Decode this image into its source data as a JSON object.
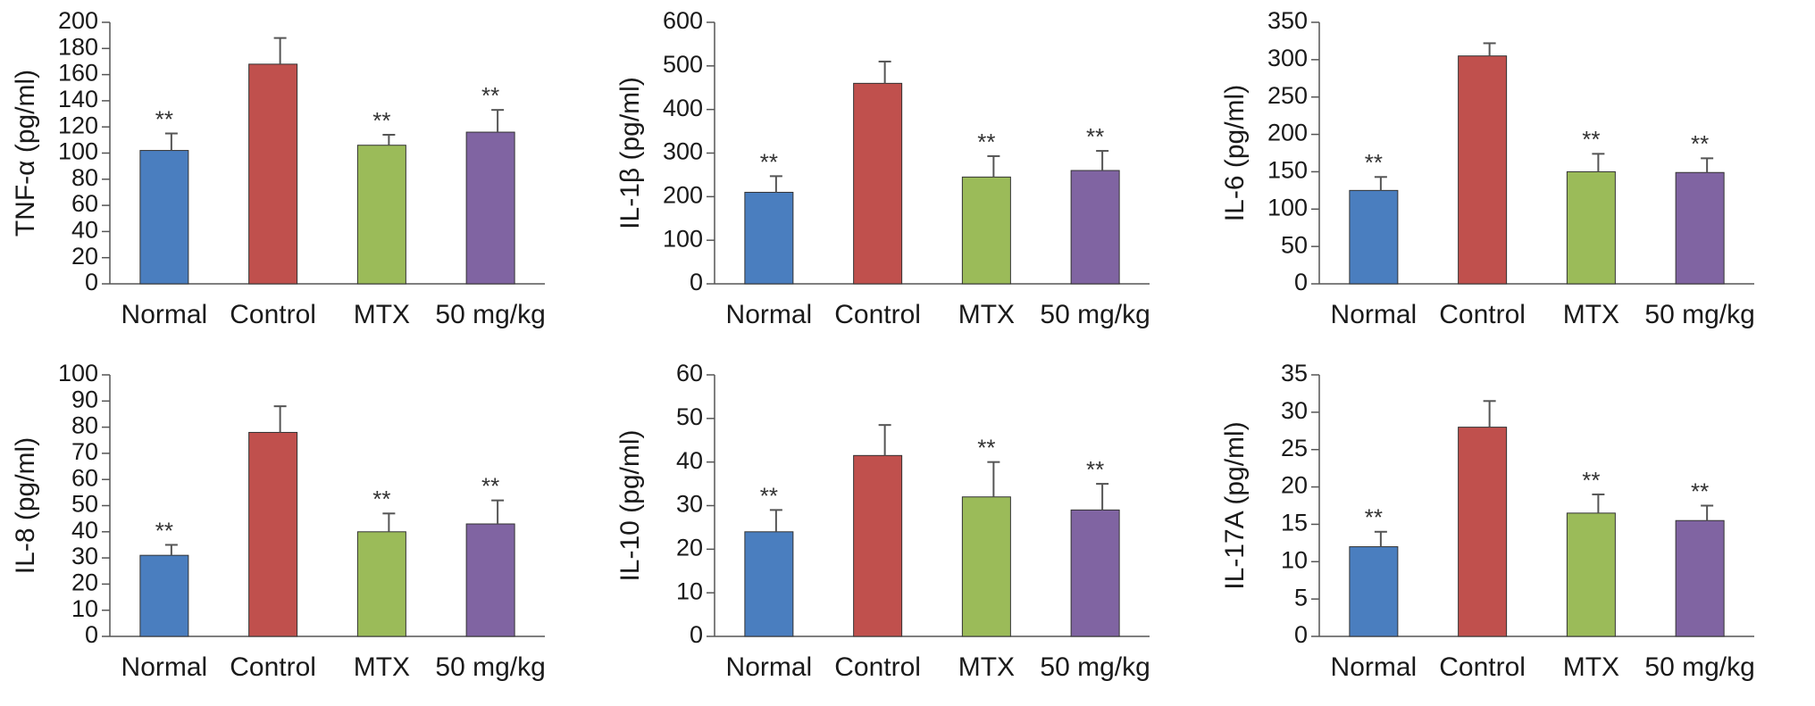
{
  "chart_data": [
    {
      "type": "bar",
      "ylabel": "TNF-α (pg/ml)",
      "categories": [
        "Normal",
        "Control",
        "MTX",
        "50 mg/kg"
      ],
      "values": [
        102,
        168,
        106,
        116
      ],
      "errors": [
        13,
        20,
        8,
        17
      ],
      "annotations": [
        "**",
        null,
        "**",
        "**"
      ],
      "colors": [
        "#4a7ebf",
        "#c0504d",
        "#9bbb59",
        "#8064a2"
      ],
      "ylim": [
        0,
        200
      ],
      "yticks": [
        0,
        20,
        40,
        60,
        80,
        100,
        120,
        140,
        160,
        180,
        200
      ]
    },
    {
      "type": "bar",
      "ylabel": "IL-1β (pg/ml)",
      "categories": [
        "Normal",
        "Control",
        "MTX",
        "50 mg/kg"
      ],
      "values": [
        210,
        460,
        245,
        260
      ],
      "errors": [
        37,
        50,
        48,
        45
      ],
      "annotations": [
        "**",
        null,
        "**",
        "**"
      ],
      "colors": [
        "#4a7ebf",
        "#c0504d",
        "#9bbb59",
        "#8064a2"
      ],
      "ylim": [
        0,
        600
      ],
      "yticks": [
        0,
        100,
        200,
        300,
        400,
        500,
        600
      ]
    },
    {
      "type": "bar",
      "ylabel": "IL-6 (pg/ml)",
      "categories": [
        "Normal",
        "Control",
        "MTX",
        "50 mg/kg"
      ],
      "values": [
        125,
        305,
        150,
        149
      ],
      "errors": [
        18,
        17,
        24,
        19
      ],
      "annotations": [
        "**",
        null,
        "**",
        "**"
      ],
      "colors": [
        "#4a7ebf",
        "#c0504d",
        "#9bbb59",
        "#8064a2"
      ],
      "ylim": [
        0,
        350
      ],
      "yticks": [
        0,
        50,
        100,
        150,
        200,
        250,
        300,
        350
      ]
    },
    {
      "type": "bar",
      "ylabel": "IL-8 (pg/ml)",
      "categories": [
        "Normal",
        "Control",
        "MTX",
        "50 mg/kg"
      ],
      "values": [
        31,
        78,
        40,
        43
      ],
      "errors": [
        4,
        10,
        7,
        9
      ],
      "annotations": [
        "**",
        null,
        "**",
        "**"
      ],
      "colors": [
        "#4a7ebf",
        "#c0504d",
        "#9bbb59",
        "#8064a2"
      ],
      "ylim": [
        0,
        100
      ],
      "yticks": [
        0,
        10,
        20,
        30,
        40,
        50,
        60,
        70,
        80,
        90,
        100
      ]
    },
    {
      "type": "bar",
      "ylabel": "IL-10 (pg/ml)",
      "categories": [
        "Normal",
        "Control",
        "MTX",
        "50 mg/kg"
      ],
      "values": [
        24,
        41.5,
        32,
        29
      ],
      "errors": [
        5,
        7,
        8,
        6
      ],
      "annotations": [
        "**",
        null,
        "**",
        "**"
      ],
      "colors": [
        "#4a7ebf",
        "#c0504d",
        "#9bbb59",
        "#8064a2"
      ],
      "ylim": [
        0,
        60
      ],
      "yticks": [
        0,
        10,
        20,
        30,
        40,
        50,
        60
      ]
    },
    {
      "type": "bar",
      "ylabel": "IL-17A (pg/ml)",
      "categories": [
        "Normal",
        "Control",
        "MTX",
        "50 mg/kg"
      ],
      "values": [
        12,
        28,
        16.5,
        15.5
      ],
      "errors": [
        2,
        3.5,
        2.5,
        2
      ],
      "annotations": [
        "**",
        null,
        "**",
        "**"
      ],
      "colors": [
        "#4a7ebf",
        "#c0504d",
        "#9bbb59",
        "#8064a2"
      ],
      "ylim": [
        0,
        35
      ],
      "yticks": [
        0,
        5,
        10,
        15,
        20,
        25,
        30,
        35
      ]
    }
  ]
}
